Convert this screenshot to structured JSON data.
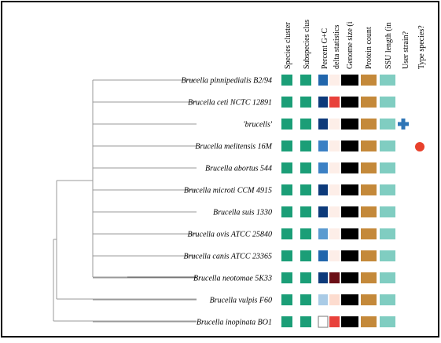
{
  "headers": [
    "Species cluster",
    "Subspecies clus",
    "Percent G+C",
    "delta statistics",
    "Genome size (i",
    "Protein count",
    "SSU length (in",
    "User strain?",
    "Type species?"
  ],
  "rows": [
    {
      "name": "Brucella pinnipedialis B2/94",
      "cells": [
        "#1b9e77",
        "#1b9e77",
        "#2166ac",
        "#fdeee8",
        "#000000",
        "#c4893a",
        "#80cdc1"
      ]
    },
    {
      "name": "Brucella ceti NCTC 12891",
      "cells": [
        "#1b9e77",
        "#1b9e77",
        "#0d3a7a",
        "#e8413b",
        "#000000",
        "#c4893a",
        "#80cdc1"
      ]
    },
    {
      "name": "'brucells'",
      "cells": [
        "#1b9e77",
        "#1b9e77",
        "#0d3a7a",
        "#fdeee8",
        "#000000",
        "#c4893a",
        "#80cdc1"
      ],
      "user_strain": true
    },
    {
      "name": "Brucella melitensis 16M",
      "cells": [
        "#1b9e77",
        "#1b9e77",
        "#3b80c4",
        "#fdeee8",
        "#000000",
        "#c4893a",
        "#80cdc1"
      ],
      "type_species": true
    },
    {
      "name": "Brucella abortus 544",
      "cells": [
        "#1b9e77",
        "#1b9e77",
        "#3b80c4",
        "#fdeee8",
        "#000000",
        "#c4893a",
        "#80cdc1"
      ]
    },
    {
      "name": "Brucella microti CCM 4915",
      "cells": [
        "#1b9e77",
        "#1b9e77",
        "#0d3a7a",
        "#fdeee8",
        "#000000",
        "#c4893a",
        "#80cdc1"
      ]
    },
    {
      "name": "Brucella suis 1330",
      "cells": [
        "#1b9e77",
        "#1b9e77",
        "#0d3a7a",
        "#fdeee8",
        "#000000",
        "#c4893a",
        "#80cdc1"
      ]
    },
    {
      "name": "Brucella ovis ATCC 25840",
      "cells": [
        "#1b9e77",
        "#1b9e77",
        "#5a9bd0",
        "#fdeee8",
        "#000000",
        "#c4893a",
        "#80cdc1"
      ]
    },
    {
      "name": "Brucella canis ATCC 23365",
      "cells": [
        "#1b9e77",
        "#1b9e77",
        "#2166ac",
        "#fdeee8",
        "#000000",
        "#c4893a",
        "#80cdc1"
      ]
    },
    {
      "name": "Brucella neotomae 5K33",
      "cells": [
        "#1b9e77",
        "#1b9e77",
        "#0d3a7a",
        "#6b0f16",
        "#000000",
        "#c4893a",
        "#80cdc1"
      ]
    },
    {
      "name": "Brucella vulpis F60",
      "cells": [
        "#1b9e77",
        "#1b9e77",
        "#a9cbe6",
        "#fddccf",
        "#000000",
        "#c4893a",
        "#80cdc1"
      ]
    },
    {
      "name": "Brucella inopinata BO1",
      "cells": [
        "#1b9e77",
        "#1b9e77",
        "#ffffff",
        "#e8413b",
        "#000000",
        "#c4893a",
        "#80cdc1"
      ]
    }
  ]
}
